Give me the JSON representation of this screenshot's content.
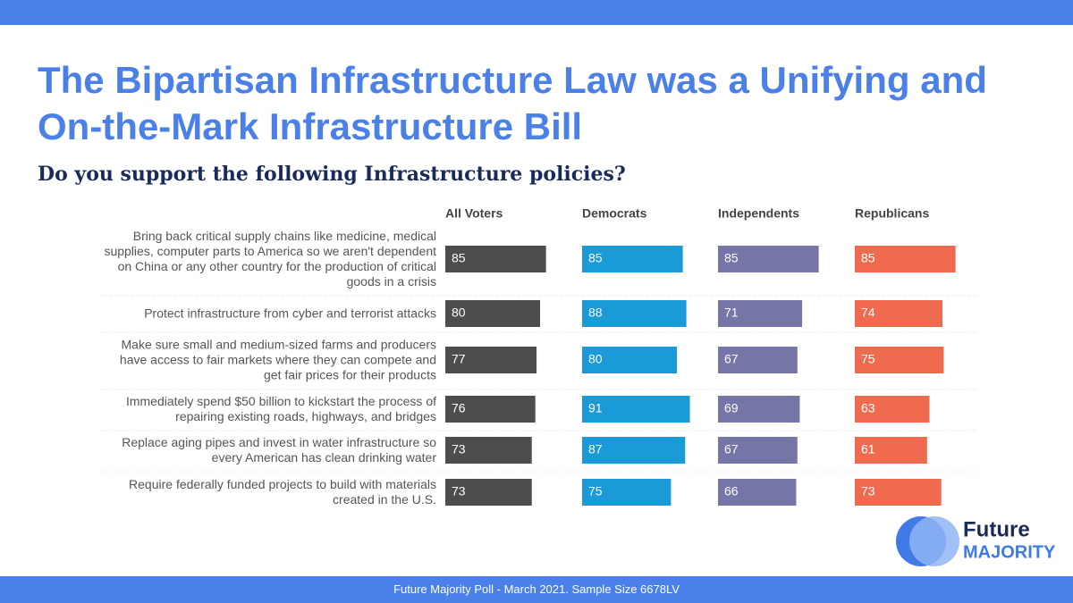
{
  "chart_data": {
    "type": "bar",
    "orientation": "horizontal",
    "title": "The Bipartisan Infrastructure Law was a Unifying and On-the-Mark Infrastructure Bill",
    "subtitle": "Do you support the following Infrastructure policies?",
    "categories": [
      "Bring back critical supply chains like medicine, medical supplies, computer parts to America so we aren't dependent on China or any other country for the production of critical goods in a crisis",
      "Protect infrastructure from cyber and terrorist attacks",
      "Make sure small and medium-sized farms and producers have access to fair markets where they can compete and get fair prices for their products",
      "Immediately spend $50 billion to kickstart the process of repairing existing roads, highways, and bridges",
      "Replace aging pipes and invest in water infrastructure so every American has clean drinking water",
      "Require federally funded projects to build with materials created in the U.S."
    ],
    "series": [
      {
        "name": "All Voters",
        "color": "#4d4d4f",
        "values": [
          85,
          80,
          77,
          76,
          73,
          73
        ]
      },
      {
        "name": "Democrats",
        "color": "#1a9ad6",
        "values": [
          85,
          88,
          80,
          91,
          87,
          75
        ]
      },
      {
        "name": "Independents",
        "color": "#7575a8",
        "values": [
          85,
          71,
          67,
          69,
          67,
          66
        ]
      },
      {
        "name": "Republicans",
        "color": "#ef6a4f",
        "values": [
          85,
          74,
          75,
          63,
          61,
          73
        ]
      }
    ]
  },
  "footer": "Future Majority Poll - March 2021. Sample Size 6678LV",
  "logo": {
    "line1": "Future",
    "line2": "MAJORITY"
  }
}
